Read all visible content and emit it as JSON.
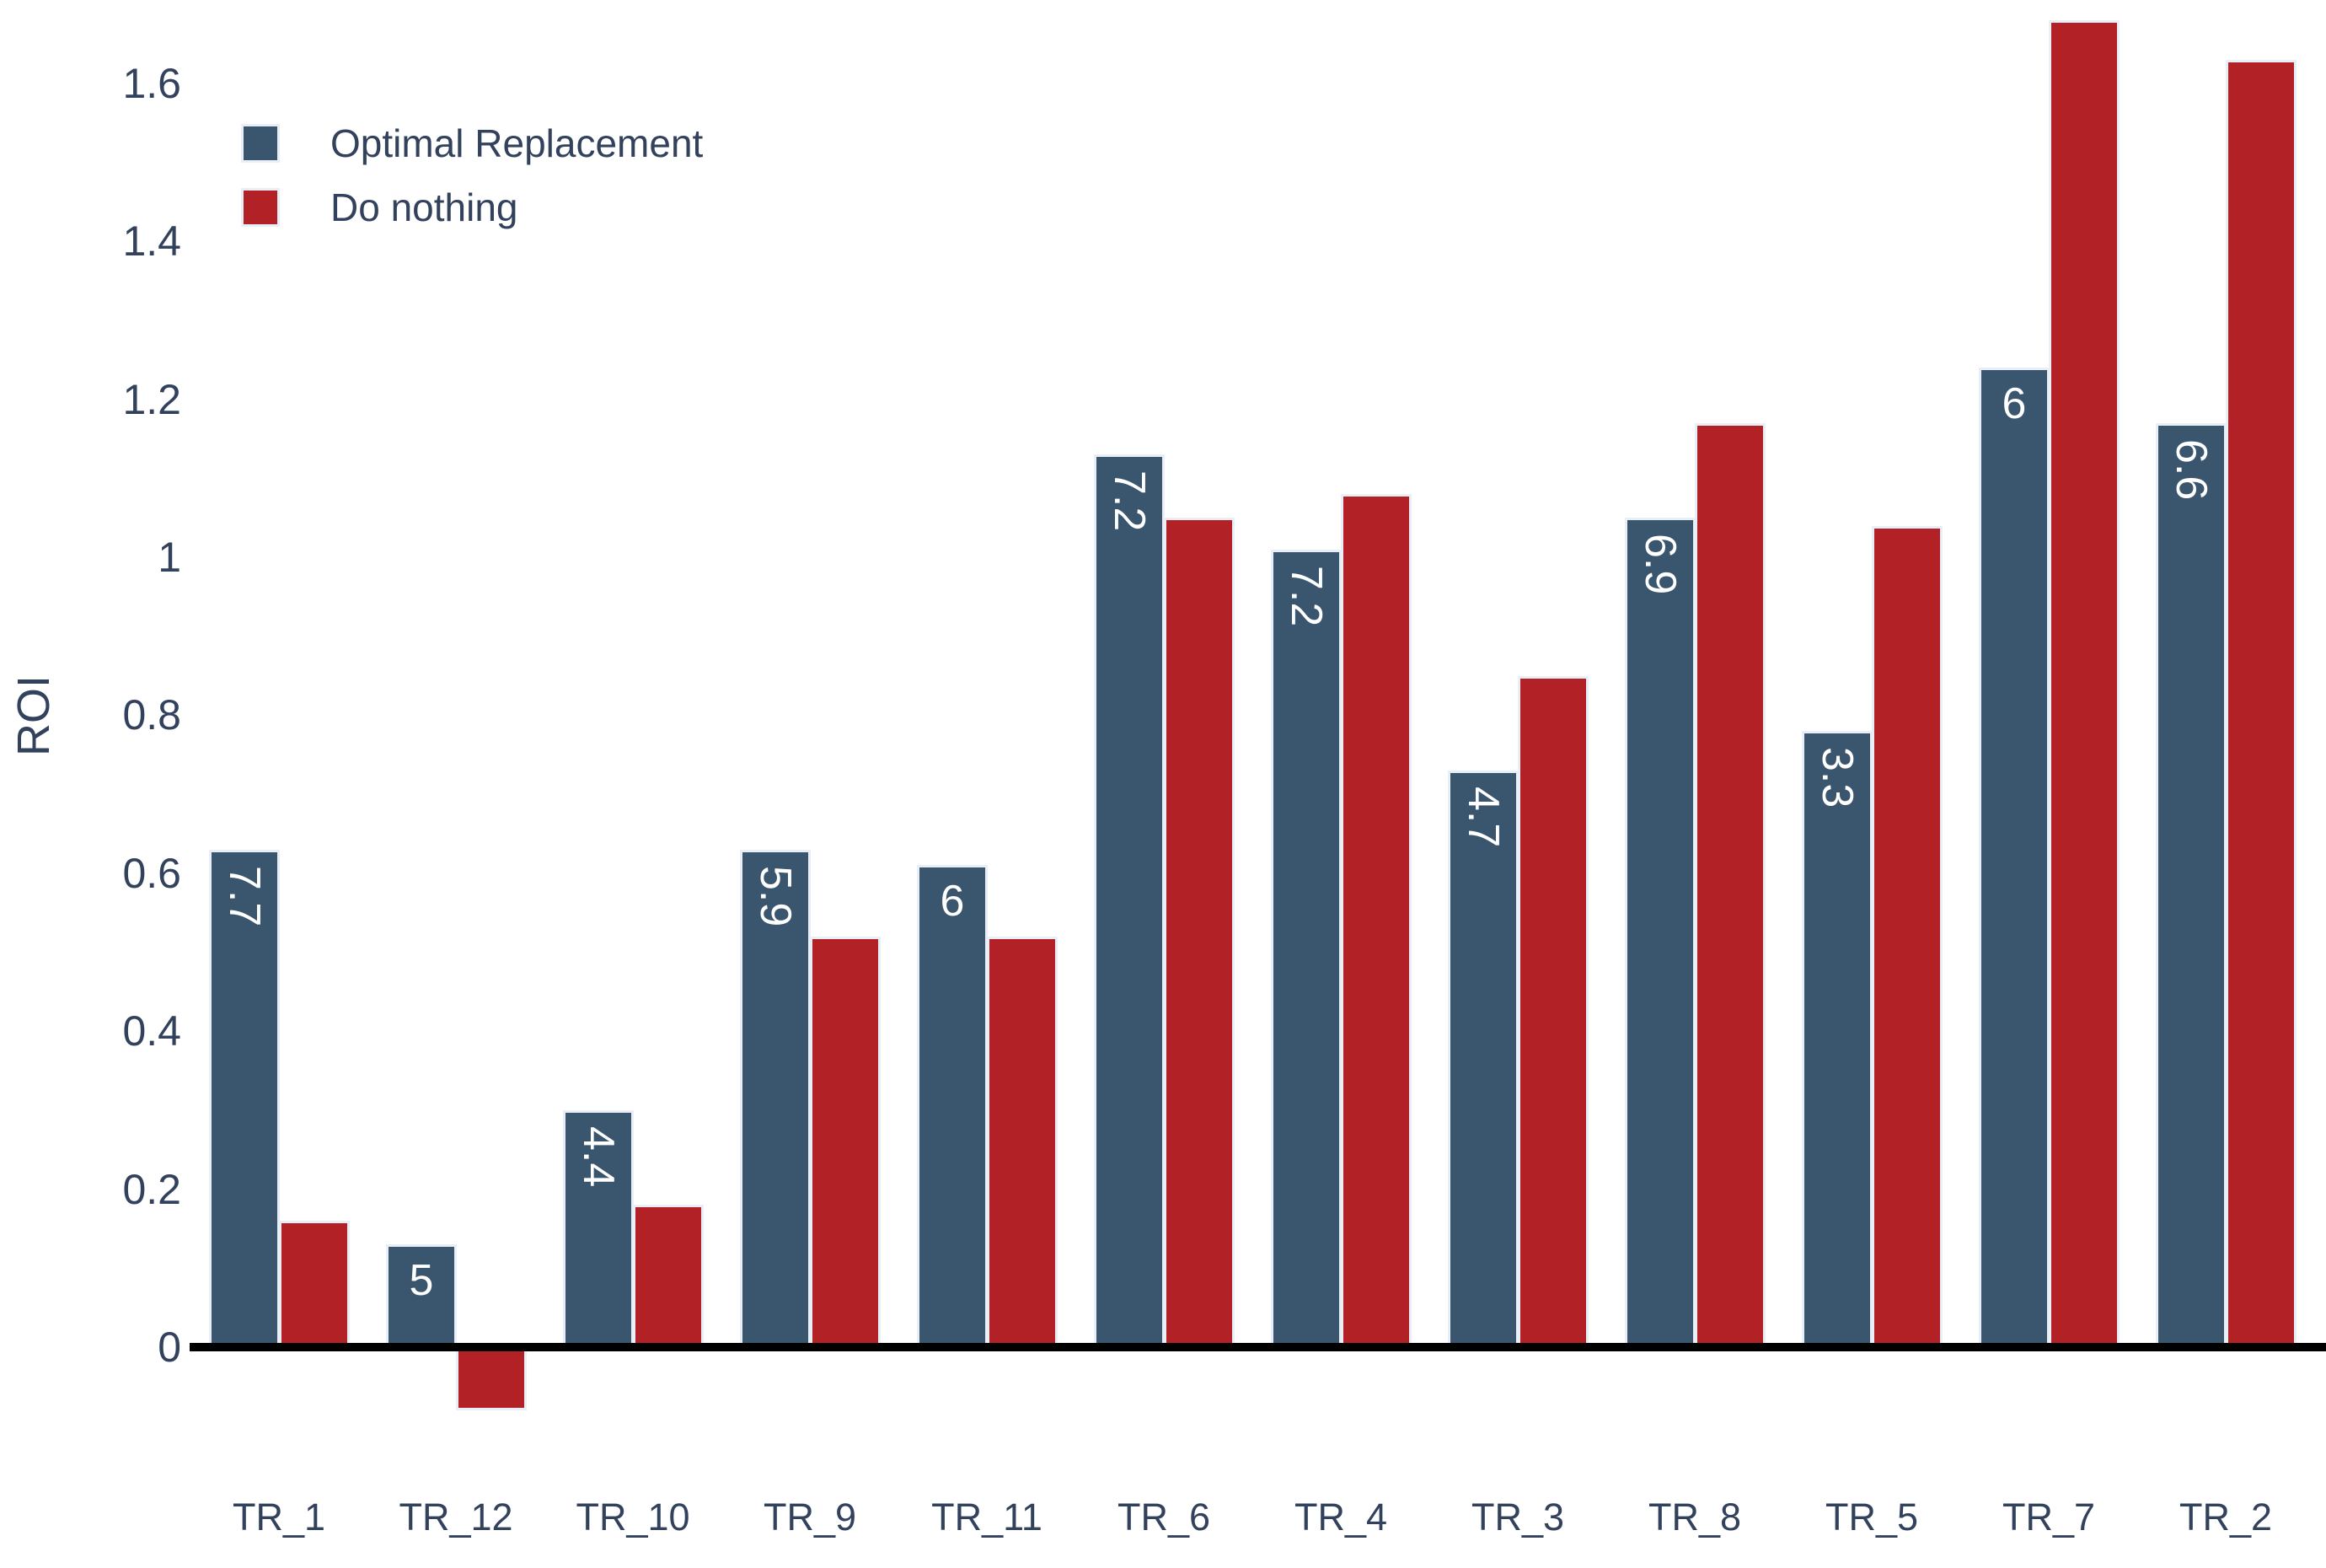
{
  "figure": {
    "y_axis_label": "ROI"
  },
  "legend": {
    "items": [
      {
        "label": "Optimal Replacement",
        "color": "#3A556E"
      },
      {
        "label": "Do nothing",
        "color": "#B22126"
      }
    ]
  },
  "colors": {
    "optimal_blue": "#3A556E",
    "do_nothing_red": "#B22126",
    "axis_text": "#33425C",
    "bar_border": "#E9EEF7",
    "zero_line": "#000000",
    "bar_value_text": "#FFFFFF"
  },
  "chart_data": {
    "type": "bar",
    "title": "",
    "xlabel": "",
    "ylabel": "ROI",
    "grid": false,
    "legend_position": "top-left",
    "ylim": [
      -0.12,
      1.705
    ],
    "y_ticks": [
      "0",
      "0.2",
      "0.4",
      "0.6",
      "0.8",
      "1",
      "1.2",
      "1.4",
      "1.6"
    ],
    "y_tick_values": [
      0,
      0.2,
      0.4,
      0.6,
      0.8,
      1,
      1.2,
      1.4,
      1.6
    ],
    "categories": [
      "TR_1",
      "TR_12",
      "TR_10",
      "TR_9",
      "TR_11",
      "TR_6",
      "TR_4",
      "TR_3",
      "TR_8",
      "TR_5",
      "TR_7",
      "TR_2"
    ],
    "series": [
      {
        "name": "Optimal Replacement",
        "color": "#3A556E",
        "values": [
          0.63,
          0.13,
          0.3,
          0.63,
          0.61,
          1.13,
          1.01,
          0.73,
          1.05,
          0.78,
          1.24,
          1.17
        ],
        "bar_labels": [
          "7.7",
          "5",
          "4.4",
          "5.9",
          "6",
          "7.2",
          "7.2",
          "4.7",
          "6.9",
          "3.3",
          "6",
          "6.6"
        ]
      },
      {
        "name": "Do nothing",
        "color": "#B22126",
        "values": [
          0.16,
          -0.08,
          0.18,
          0.52,
          0.52,
          1.05,
          1.08,
          0.85,
          1.17,
          1.04,
          1.68,
          1.63
        ],
        "bar_labels": [
          "",
          "",
          "",
          "",
          "",
          "",
          "",
          "",
          "",
          "",
          "",
          ""
        ]
      }
    ]
  }
}
